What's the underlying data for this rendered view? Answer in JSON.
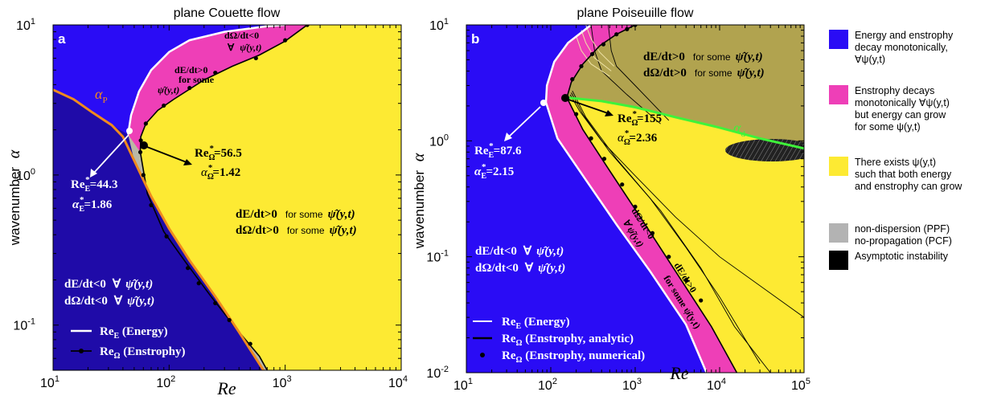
{
  "chart_data": [
    {
      "id": "a",
      "type": "area",
      "title": "plane Couette flow",
      "panel_letter": "a",
      "xlabel": "Re",
      "ylabel": "wavenumber",
      "ylabel_symbol": "α",
      "xscale": "log",
      "yscale": "log",
      "xlim": [
        10,
        10000
      ],
      "ylim": [
        0.05,
        10
      ],
      "x_ticks": [
        {
          "base": "10",
          "exp": "1"
        },
        {
          "base": "10",
          "exp": "2"
        },
        {
          "base": "10",
          "exp": "3"
        },
        {
          "base": "10",
          "exp": "4"
        }
      ],
      "y_ticks": [
        {
          "base": "10",
          "exp": "-1",
          "v": 0.1
        },
        {
          "base": "10",
          "exp": "0",
          "v": 1
        },
        {
          "base": "10",
          "exp": "1",
          "v": 10
        }
      ],
      "colors": {
        "energy_enstrophy_decay": "#2a0cf5",
        "enstrophy_decay": "#ee3fb7",
        "growth": "#fdea33",
        "nondispersion": "#b3b3b3",
        "asymptotic": "#000000",
        "alpha_p": "#f08a1d"
      },
      "series": [
        {
          "name": "Re_E (Energy)",
          "style": "white-line",
          "points": [
            [
              44.3,
              1.86
            ],
            [
              47,
              2.5
            ],
            [
              55,
              3.6
            ],
            [
              70,
              5.0
            ],
            [
              100,
              6.6
            ],
            [
              150,
              7.9
            ],
            [
              300,
              9.0
            ],
            [
              700,
              9.8
            ],
            [
              1000,
              10
            ]
          ]
        },
        {
          "name": "Re_Ω (Enstrophy)",
          "style": "black-line-dots",
          "points": [
            [
              56.5,
              1.42
            ],
            [
              57,
              1.8
            ],
            [
              63,
              2.2
            ],
            [
              80,
              2.7
            ],
            [
              110,
              3.2
            ],
            [
              200,
              4.3
            ],
            [
              350,
              5.3
            ],
            [
              600,
              6.3
            ],
            [
              1000,
              7.8
            ],
            [
              1550,
              10
            ],
            [
              56.5,
              1.42
            ],
            [
              65,
              0.75
            ],
            [
              90,
              0.42
            ],
            [
              140,
              0.26
            ],
            [
              230,
              0.155
            ],
            [
              400,
              0.09
            ],
            [
              600,
              0.062
            ],
            [
              700,
              0.05
            ]
          ],
          "markers": [
            [
              56.5,
              1.42
            ],
            [
              57,
              1.7
            ],
            [
              63,
              2.2
            ],
            [
              90,
              2.9
            ],
            [
              150,
              3.8
            ],
            [
              250,
              4.8
            ],
            [
              560,
              6.0
            ],
            [
              1000,
              7.9
            ],
            [
              1550,
              10
            ],
            [
              60,
              1.0
            ],
            [
              70,
              0.63
            ],
            [
              95,
              0.39
            ],
            [
              145,
              0.24
            ],
            [
              180,
              0.19
            ],
            [
              250,
              0.14
            ],
            [
              330,
              0.108
            ],
            [
              500,
              0.075
            ]
          ]
        },
        {
          "name": "α_p",
          "style": "orange-line",
          "points": [
            [
              10,
              3.7
            ],
            [
              15,
              3.2
            ],
            [
              22,
              2.6
            ],
            [
              32,
              2.15
            ],
            [
              40,
              1.8
            ],
            [
              50,
              1.25
            ],
            [
              70,
              0.72
            ],
            [
              100,
              0.44
            ],
            [
              150,
              0.27
            ],
            [
              250,
              0.155
            ],
            [
              400,
              0.09
            ],
            [
              650,
              0.05
            ]
          ]
        }
      ],
      "labels": {
        "alpha_p": "α",
        "alpha_p_sub": "P",
        "re_e_star": {
          "name": "Re",
          "sub": "E",
          "sup": "*",
          "value": "=44.3"
        },
        "alpha_e_star": {
          "name": "α",
          "sub": "E",
          "sup": "*",
          "value": "=1.86"
        },
        "re_om_star": {
          "name": "Re",
          "sub": "Ω",
          "sup": "*",
          "value": "=56.5"
        },
        "alpha_om_star": {
          "name": "α",
          "sub": "Ω",
          "sup": "*",
          "value": "=1.42"
        },
        "blue_line1": "dE/dt<0",
        "blue_line2": "dΩ/dt<0",
        "forall": "∀",
        "psi_hat": "ψ̂(y,t)",
        "yellow_line1": "dE/dt>0",
        "yellow_line2": "dΩ/dt>0",
        "for_some": "for some",
        "pink_upper1": "dΩ/dt<0",
        "pink_mid1": "dE/dt>0",
        "pink_mid2": "for some",
        "legend_energy": "Re",
        "legend_energy_sub": "E",
        "legend_energy_rest": " (Energy)",
        "legend_enstrophy": "Re",
        "legend_enstrophy_sub": "Ω",
        "legend_enstrophy_rest": " (Enstrophy)"
      }
    },
    {
      "id": "b",
      "type": "area",
      "title": "plane Poiseuille flow",
      "panel_letter": "b",
      "xlabel": "Re",
      "ylabel": "wavenumber",
      "ylabel_symbol": "α",
      "xscale": "log",
      "yscale": "log",
      "xlim": [
        10,
        100000
      ],
      "ylim": [
        0.01,
        10
      ],
      "x_ticks": [
        {
          "base": "10",
          "exp": "1"
        },
        {
          "base": "10",
          "exp": "2"
        },
        {
          "base": "10",
          "exp": "3"
        },
        {
          "base": "10",
          "exp": "4"
        },
        {
          "base": "10",
          "exp": "5"
        }
      ],
      "y_ticks": [
        {
          "base": "10",
          "exp": "-2",
          "v": 0.01
        },
        {
          "base": "10",
          "exp": "-1",
          "v": 0.1
        },
        {
          "base": "10",
          "exp": "0",
          "v": 1
        },
        {
          "base": "10",
          "exp": "1",
          "v": 10
        }
      ],
      "series": [
        {
          "name": "Re_E (Energy)",
          "style": "white-line",
          "points": [
            [
              87.6,
              2.15
            ],
            [
              90,
              3.0
            ],
            [
              110,
              4.8
            ],
            [
              160,
              7.0
            ],
            [
              230,
              8.6
            ],
            [
              300,
              10
            ],
            [
              87.6,
              2.15
            ],
            [
              120,
              1.05
            ],
            [
              250,
              0.48
            ],
            [
              600,
              0.19
            ],
            [
              1500,
              0.075
            ],
            [
              4000,
              0.026
            ],
            [
              7000,
              0.01
            ]
          ]
        },
        {
          "name": "Re_Ω (Enstrophy, analytic)",
          "style": "black-line",
          "points": [
            [
              155,
              2.36
            ],
            [
              175,
              3.2
            ],
            [
              240,
              4.6
            ],
            [
              380,
              6.6
            ],
            [
              600,
              8.3
            ],
            [
              1000,
              10
            ],
            [
              155,
              2.36
            ],
            [
              240,
              1.25
            ],
            [
              500,
              0.55
            ],
            [
              1200,
              0.21
            ],
            [
              3000,
              0.075
            ],
            [
              8000,
              0.025
            ],
            [
              16000,
              0.01
            ]
          ]
        },
        {
          "name": "Re_Ω (Enstrophy, numerical)",
          "style": "black-dots",
          "points": [
            [
              155,
              2.36
            ],
            [
              180,
              3.4
            ],
            [
              230,
              4.4
            ],
            [
              310,
              5.6
            ],
            [
              420,
              6.8
            ],
            [
              600,
              8.3
            ],
            [
              800,
              9.2
            ],
            [
              1000,
              10
            ],
            [
              200,
              1.7
            ],
            [
              300,
              1.05
            ],
            [
              430,
              0.7
            ],
            [
              700,
              0.42
            ],
            [
              1000,
              0.27
            ],
            [
              1600,
              0.16
            ],
            [
              2500,
              0.1
            ],
            [
              4000,
              0.063
            ],
            [
              6000,
              0.042
            ]
          ]
        },
        {
          "name": "α_d",
          "style": "green-line",
          "points": [
            [
              155,
              2.36
            ],
            [
              400,
              2.2
            ],
            [
              1000,
              1.95
            ],
            [
              3000,
              1.6
            ],
            [
              10000,
              1.3
            ],
            [
              30000,
              1.05
            ],
            [
              100000,
              0.86
            ]
          ]
        }
      ],
      "labels": {
        "alpha_d": "α",
        "alpha_d_sub": "d",
        "re_e_star": {
          "name": "Re",
          "sub": "E",
          "sup": "*",
          "value": "=87.6"
        },
        "alpha_e_star": {
          "name": "α",
          "sub": "E",
          "sup": "*",
          "value": "=2.15"
        },
        "re_om_star": {
          "name": "Re",
          "sub": "Ω",
          "sup": "*",
          "value": "=155"
        },
        "alpha_om_star": {
          "name": "α",
          "sub": "Ω",
          "sup": "*",
          "value": "=2.36"
        },
        "blue_line1": "dE/dt<0",
        "blue_line2": "dΩ/dt<0",
        "forall": "∀",
        "psi_hat": "ψ̂(y,t)",
        "yellow_line1": "dE/dt>0",
        "yellow_line2": "dΩ/dt>0",
        "for_some": "for some",
        "pink_rot1": "dΩ/dt<0",
        "pink_rot2": "∀ ψ̂(y,t)",
        "pink_rot3": "dE/dt>0",
        "pink_rot4": "for some ψ̂(y,t)",
        "legend_energy": "Re",
        "legend_energy_sub": "E",
        "legend_energy_rest": " (Energy)",
        "legend_analytic": "Re",
        "legend_analytic_sub": "Ω",
        "legend_analytic_rest": " (Enstrophy, analytic)",
        "legend_numerical": "Re",
        "legend_numerical_sub": "Ω",
        "legend_numerical_rest": " (Enstrophy, numerical)"
      }
    }
  ],
  "legend": {
    "items": [
      {
        "color": "#2a0cf5",
        "lines": [
          "Energy and enstrophy",
          "decay monotonically,",
          "∀ψ(y,t)"
        ]
      },
      {
        "color": "#ee3fb7",
        "lines": [
          "Enstrophy decays",
          "monotonically ∀ψ(y,t)",
          "but energy can grow",
          "for some ψ(y,t)"
        ]
      },
      {
        "color": "#fdea33",
        "lines": [
          "There exists ψ(y,t)",
          "such that both energy",
          "and enstrophy can grow"
        ]
      },
      {
        "color": "#b3b3b3",
        "lines": [
          "non-dispersion (PPF)",
          "no-propagation (PCF)"
        ]
      },
      {
        "color": "#000000",
        "lines": [
          "Asymptotic instability"
        ]
      }
    ]
  }
}
